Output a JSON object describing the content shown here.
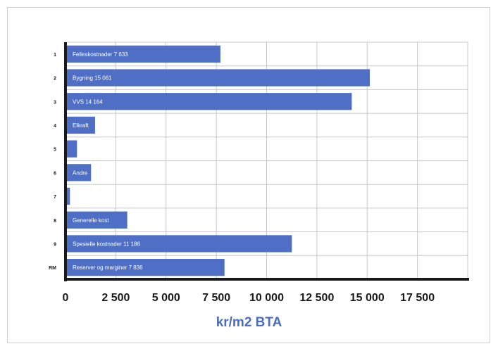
{
  "chart_data": {
    "type": "bar",
    "orientation": "horizontal",
    "categories": [
      "1",
      "2",
      "3",
      "4",
      "5",
      "6",
      "7",
      "8",
      "9",
      "RM"
    ],
    "bar_labels": [
      "Felleskostnader 7 633",
      "Bygning 15 061",
      "VVS 14 164",
      "Elkraft",
      "",
      "Andre",
      "",
      "Generelle kost",
      "Spesielle kostnader 11 186",
      "Reserver og marginer 7 836"
    ],
    "values": [
      7633,
      15061,
      14164,
      1400,
      500,
      1200,
      150,
      3000,
      11186,
      7836
    ],
    "xlabel": "kr/m2 BTA",
    "ylabel": "",
    "title": "",
    "xlim": [
      0,
      20000
    ],
    "xticks": [
      0,
      2500,
      5000,
      7500,
      10000,
      12500,
      15000,
      17500
    ],
    "xtick_labels": [
      "0",
      "2 500",
      "5 000",
      "7 500",
      "10 000",
      "12 500",
      "15 000",
      "17 500"
    ],
    "grid": true,
    "legend": "none",
    "colors": {
      "bar": "#4f6fc7",
      "grid": "#c8c8c8",
      "axis": "#1a1a1a",
      "xlabel": "#4a6dc0"
    }
  }
}
